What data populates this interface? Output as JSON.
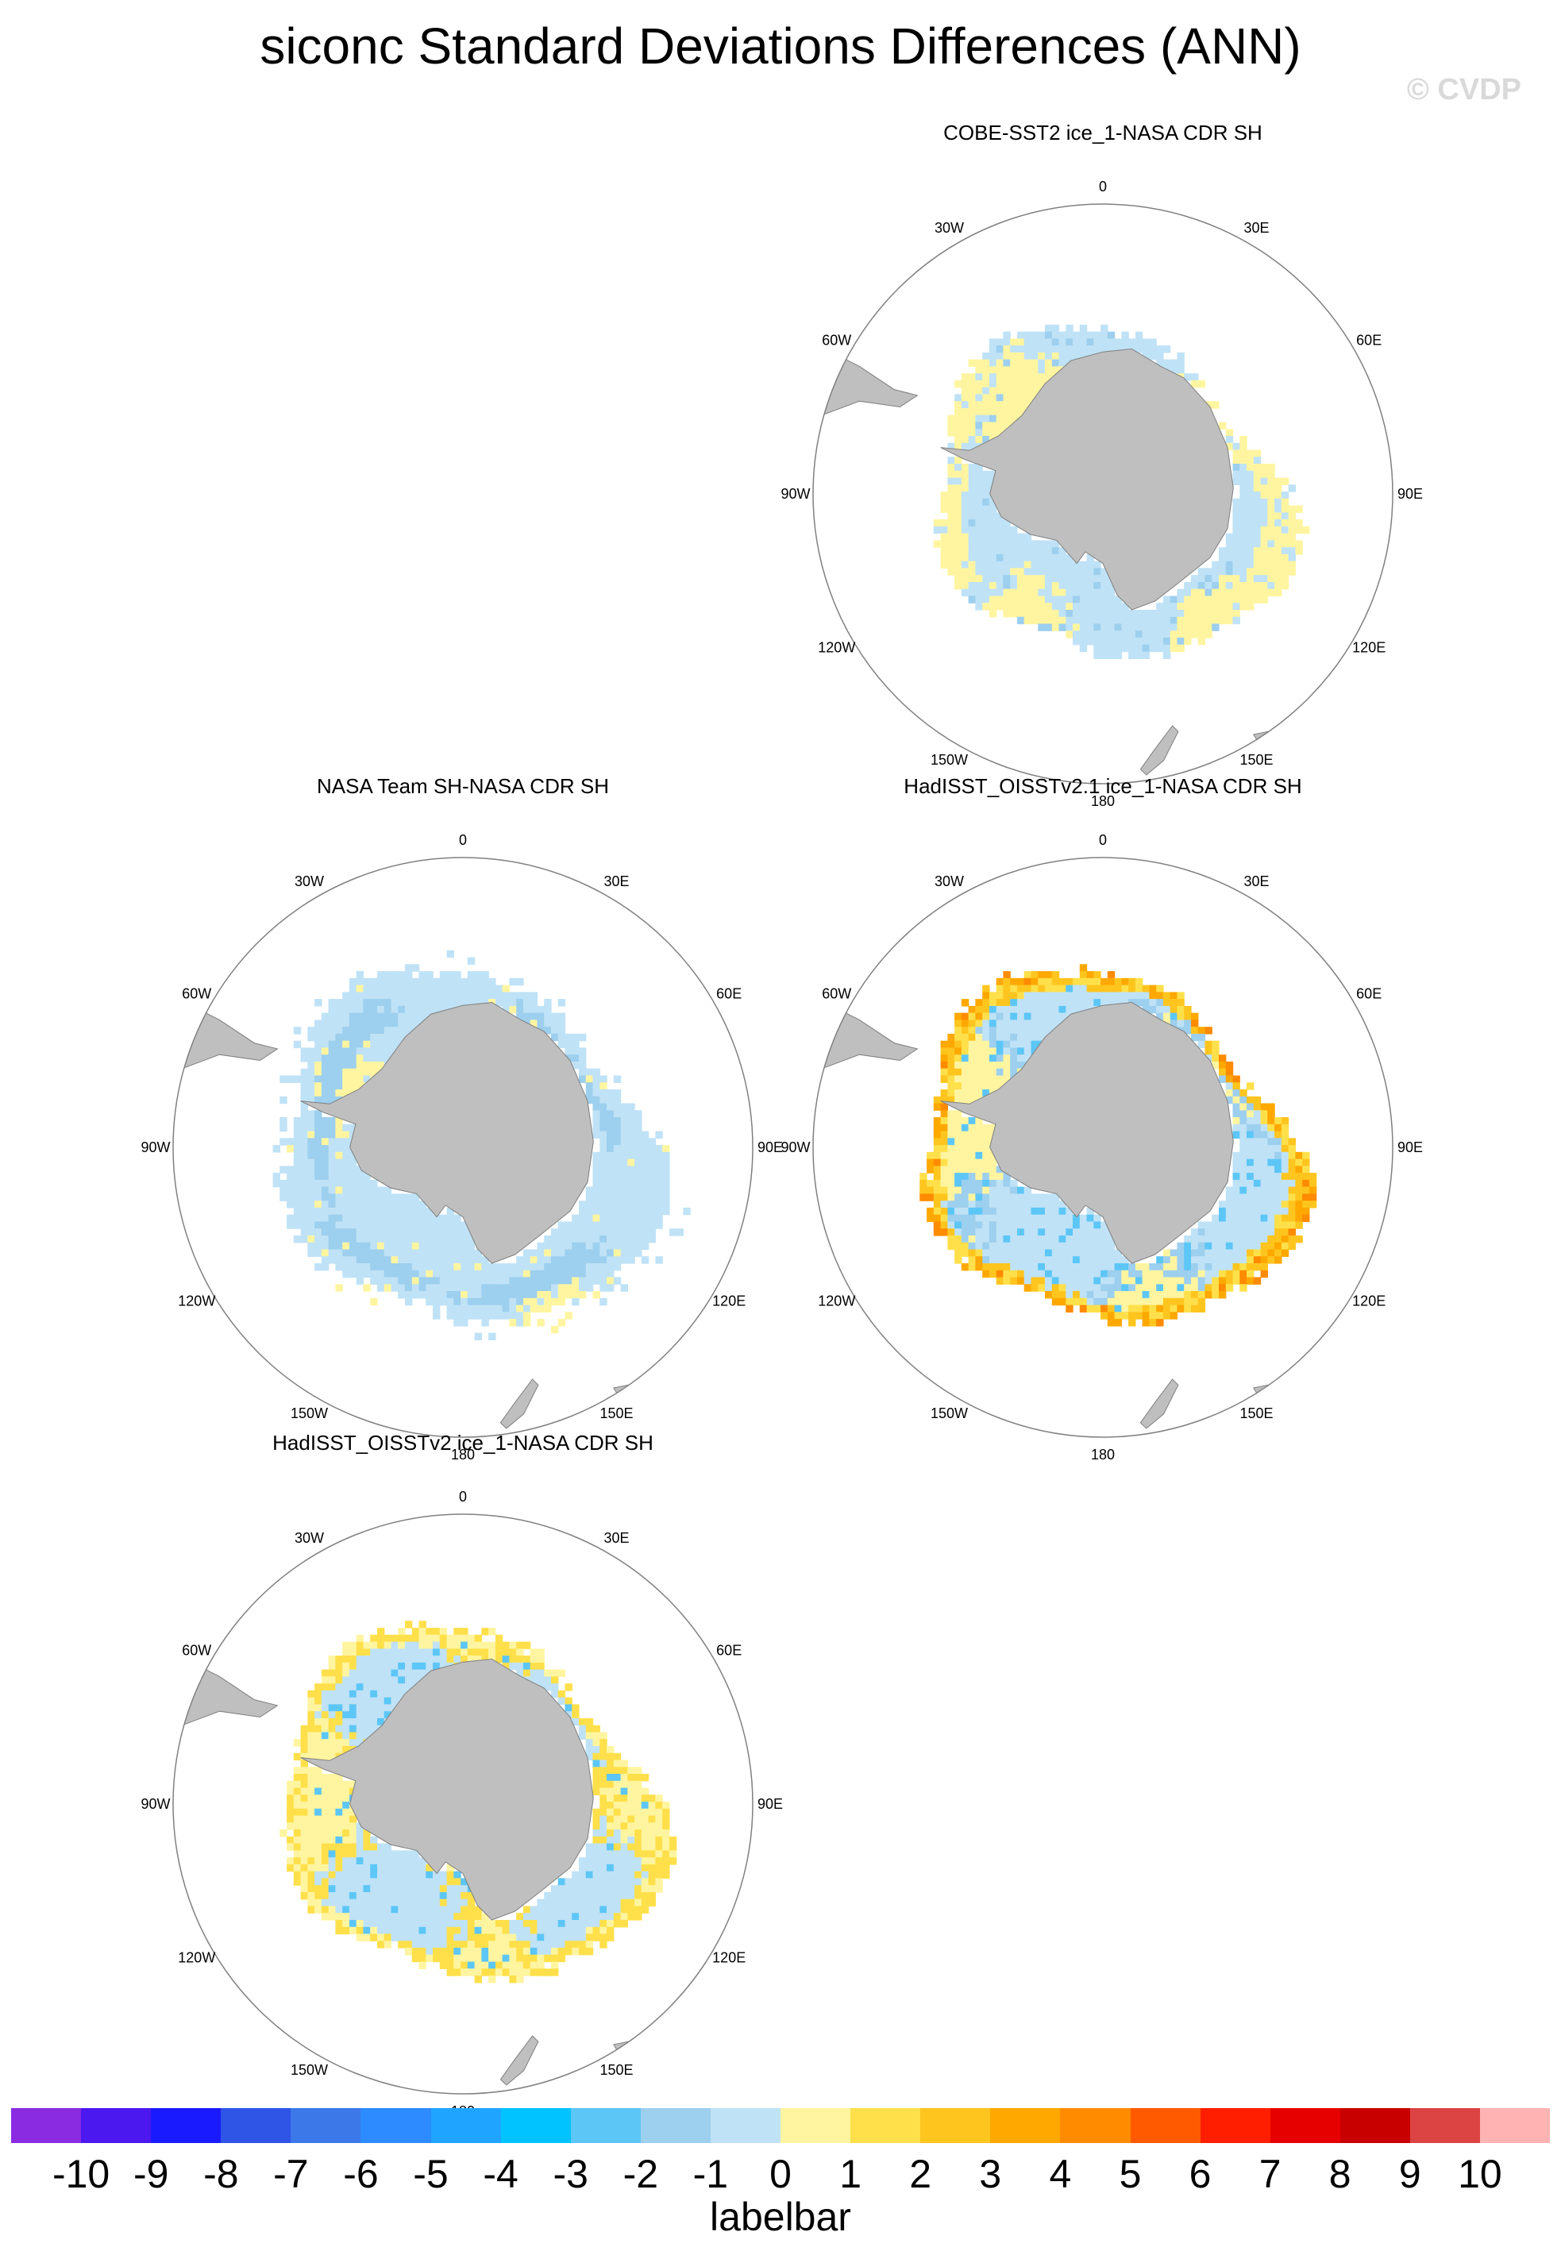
{
  "title": "siconc Standard Deviations Differences (ANN)",
  "watermark": "© CVDP",
  "lon_labels": [
    "0",
    "30E",
    "60E",
    "90E",
    "120E",
    "150E",
    "180",
    "150W",
    "120W",
    "90W",
    "60W",
    "30W"
  ],
  "panels": [
    {
      "title": "COBE-SST2 ice_1-NASA CDR SH",
      "pattern": "cobe"
    },
    {
      "title": "NASA Team SH-NASA CDR SH",
      "pattern": "team"
    },
    {
      "title": "HadISST_OISSTv2.1 ice_1-NASA CDR SH",
      "pattern": "had21"
    },
    {
      "title": "HadISST_OISSTv2 ice_1-NASA CDR SH",
      "pattern": "had2"
    }
  ],
  "colors": {
    "land": "#bfbfbf",
    "coast": "#7f7f7f",
    "scale": [
      "#8a2be2",
      "#4b18f0",
      "#1a1aff",
      "#2f55e6",
      "#3c78e8",
      "#2e8bff",
      "#1fa5ff",
      "#00c3ff",
      "#5cc6f7",
      "#9dcfee",
      "#bfe2f6",
      "#fff5a0",
      "#ffe04a",
      "#ffc51f",
      "#ffa800",
      "#ff8b00",
      "#ff5a00",
      "#ff1e00",
      "#e60000",
      "#c90000",
      "#dc4444",
      "#ffb3b3"
    ]
  },
  "labelbar": {
    "title": "labelbar",
    "labels": [
      "-10",
      "-9",
      "-8",
      "-7",
      "-6",
      "-5",
      "-4",
      "-3",
      "-2",
      "-1",
      "0",
      "1",
      "2",
      "3",
      "4",
      "5",
      "6",
      "7",
      "8",
      "9",
      "10"
    ]
  }
}
